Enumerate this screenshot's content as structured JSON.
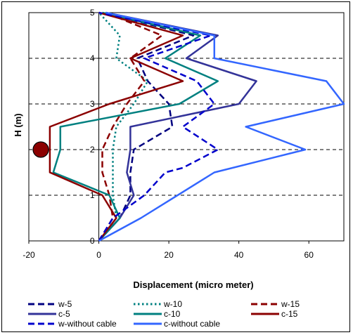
{
  "chart_data": {
    "type": "line",
    "title": "",
    "xlabel": "Displacement (micro meter)",
    "ylabel": "H (m)",
    "xlim": [
      -20,
      70
    ],
    "ylim": [
      0,
      5
    ],
    "x_ticks": [
      "-20",
      "0",
      "20",
      "40",
      "60"
    ],
    "y_ticks": [
      "0",
      "1",
      "2",
      "3",
      "4",
      "5"
    ],
    "grid": "horizontal dashed",
    "legend_position": "bottom",
    "marker": {
      "label": "",
      "y": 2.0,
      "color": "#8B0000"
    },
    "series": [
      {
        "name": "w-5",
        "color": "#000080",
        "dash": "dash",
        "points": [
          [
            0,
            0
          ],
          [
            6,
            0.5
          ],
          [
            9,
            1.0
          ],
          [
            9,
            1.5
          ],
          [
            10,
            2.0
          ],
          [
            21,
            2.5
          ],
          [
            20,
            3.0
          ],
          [
            14,
            3.5
          ],
          [
            11,
            4.0
          ],
          [
            27,
            4.5
          ],
          [
            1,
            5.0
          ]
        ]
      },
      {
        "name": "w-10",
        "color": "#008080",
        "dash": "dot",
        "points": [
          [
            0,
            0
          ],
          [
            5,
            0.5
          ],
          [
            4,
            1.0
          ],
          [
            4,
            1.5
          ],
          [
            4,
            2.0
          ],
          [
            5,
            2.5
          ],
          [
            10,
            3.0
          ],
          [
            14,
            3.5
          ],
          [
            5,
            4.0
          ],
          [
            6,
            4.5
          ],
          [
            0,
            5.0
          ]
        ]
      },
      {
        "name": "w-15",
        "color": "#8B0000",
        "dash": "dash",
        "points": [
          [
            0,
            0
          ],
          [
            4,
            0.5
          ],
          [
            3,
            1.0
          ],
          [
            1,
            1.5
          ],
          [
            1,
            2.0
          ],
          [
            4,
            2.5
          ],
          [
            8,
            3.0
          ],
          [
            13,
            3.5
          ],
          [
            9,
            4.0
          ],
          [
            18,
            4.5
          ],
          [
            2,
            5.0
          ]
        ]
      },
      {
        "name": "c-5",
        "color": "#333399",
        "dash": "solid",
        "points": [
          [
            0,
            0
          ],
          [
            6,
            0.5
          ],
          [
            10,
            1.0
          ],
          [
            8,
            1.5
          ],
          [
            9,
            2.0
          ],
          [
            9,
            2.5
          ],
          [
            40,
            3.0
          ],
          [
            45,
            3.5
          ],
          [
            25,
            4.0
          ],
          [
            34,
            4.5
          ],
          [
            2,
            5.0
          ]
        ]
      },
      {
        "name": "c-10",
        "color": "#008080",
        "dash": "solid",
        "points": [
          [
            0,
            0
          ],
          [
            6,
            0.5
          ],
          [
            3,
            1.0
          ],
          [
            -13,
            1.5
          ],
          [
            -11,
            2.0
          ],
          [
            -11,
            2.5
          ],
          [
            23,
            3.0
          ],
          [
            34,
            3.5
          ],
          [
            19,
            4.0
          ],
          [
            29,
            4.5
          ],
          [
            1,
            5.0
          ]
        ]
      },
      {
        "name": "c-15",
        "color": "#8B0000",
        "dash": "solid",
        "points": [
          [
            0,
            0
          ],
          [
            5,
            0.5
          ],
          [
            1,
            1.0
          ],
          [
            -14,
            1.5
          ],
          [
            -14,
            2.0
          ],
          [
            -14,
            2.5
          ],
          [
            3,
            3.0
          ],
          [
            24,
            3.5
          ],
          [
            9,
            4.0
          ],
          [
            24,
            4.5
          ],
          [
            0,
            5.0
          ]
        ]
      },
      {
        "name": "w-without cable",
        "color": "#0000CC",
        "dash": "dash",
        "points": [
          [
            0,
            0
          ],
          [
            4,
            0.5
          ],
          [
            13,
            1.0
          ],
          [
            19,
            1.5
          ],
          [
            24,
            1.6
          ],
          [
            34,
            2.0
          ],
          [
            24,
            2.5
          ],
          [
            33,
            3.0
          ],
          [
            28,
            3.5
          ],
          [
            13,
            4.0
          ],
          [
            32,
            4.5
          ],
          [
            0,
            5.0
          ]
        ]
      },
      {
        "name": "c-without cable",
        "color": "#3366FF",
        "dash": "solid",
        "points": [
          [
            0,
            0
          ],
          [
            12,
            0.5
          ],
          [
            33,
            1.5
          ],
          [
            59,
            2.0
          ],
          [
            42,
            2.5
          ],
          [
            70,
            3.0
          ],
          [
            65,
            3.5
          ],
          [
            33,
            4.0
          ],
          [
            33,
            4.5
          ],
          [
            2,
            5.0
          ]
        ]
      }
    ]
  }
}
